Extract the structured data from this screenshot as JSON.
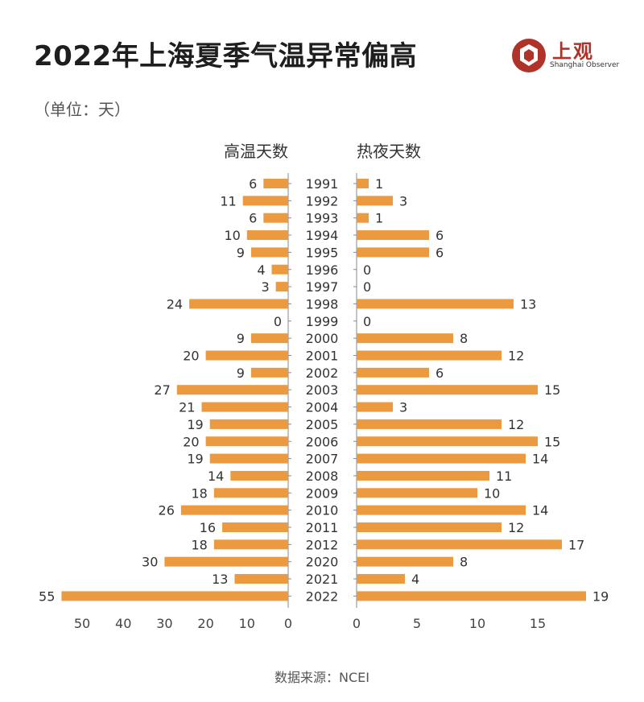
{
  "title": "2022年上海夏季气温异常偏高",
  "unit_note": "（单位：天）",
  "logo": {
    "name": "上观",
    "subtitle": "Shanghai Observer",
    "color": "#b0332a"
  },
  "source": "数据来源：NCEI",
  "chart_data": {
    "type": "bar",
    "orientation": "horizontal-butterfly",
    "categories": [
      "1991",
      "1992",
      "1993",
      "1994",
      "1995",
      "1996",
      "1997",
      "1998",
      "1999",
      "2000",
      "2001",
      "2002",
      "2003",
      "2004",
      "2005",
      "2006",
      "2007",
      "2008",
      "2009",
      "2010",
      "2011",
      "2012",
      "2020",
      "2021",
      "2022"
    ],
    "series": [
      {
        "name": "高温天数",
        "side": "left",
        "color": "#ec9a40",
        "values": [
          6,
          11,
          6,
          10,
          9,
          4,
          3,
          24,
          0,
          9,
          20,
          9,
          27,
          21,
          19,
          20,
          19,
          14,
          18,
          26,
          16,
          18,
          30,
          13,
          55
        ],
        "ticks": [
          50,
          40,
          30,
          20,
          10,
          0
        ],
        "xlim": [
          0,
          55
        ]
      },
      {
        "name": "热夜天数",
        "side": "right",
        "color": "#ec9a40",
        "values": [
          1,
          3,
          1,
          6,
          6,
          0,
          0,
          13,
          0,
          8,
          12,
          6,
          15,
          3,
          12,
          15,
          14,
          11,
          10,
          14,
          12,
          17,
          8,
          4,
          19
        ],
        "ticks": [
          0,
          5,
          10,
          15
        ],
        "xlim": [
          0,
          19
        ]
      }
    ]
  }
}
